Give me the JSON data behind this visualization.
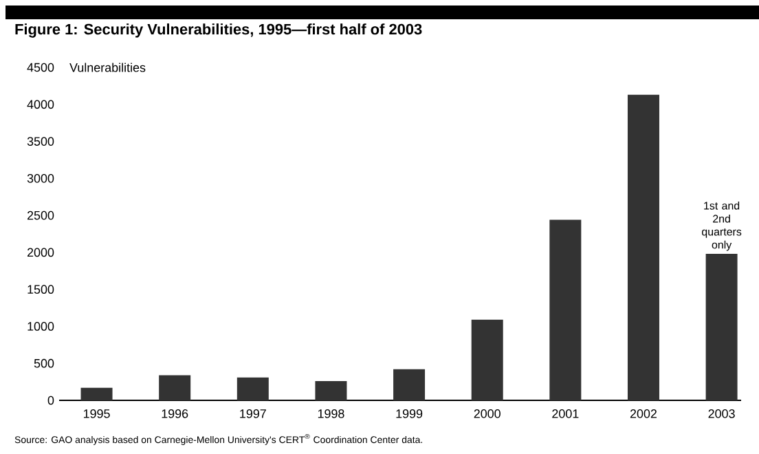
{
  "chart_data": {
    "type": "bar",
    "title": "Figure 1: Security Vulnerabilities, 1995—first half of 2003",
    "ylabel": "Vulnerabilities",
    "categories": [
      "1995",
      "1996",
      "1997",
      "1998",
      "1999",
      "2000",
      "2001",
      "2002",
      "2003"
    ],
    "values": [
      170,
      340,
      310,
      260,
      420,
      1090,
      2440,
      4130,
      1980
    ],
    "color": "#333333",
    "ylim": [
      0,
      4500
    ],
    "yticks": [
      0,
      500,
      1000,
      1500,
      2000,
      2500,
      3000,
      3500,
      4000,
      4500
    ],
    "annotations": [
      {
        "text": "1st and 2nd quarters only",
        "x": "2003",
        "y": 1980
      },
      "Source: GAO analysis based on Carnegie-Mellon University's CERT$^{®}$ Coordination Center data."
    ]
  }
}
